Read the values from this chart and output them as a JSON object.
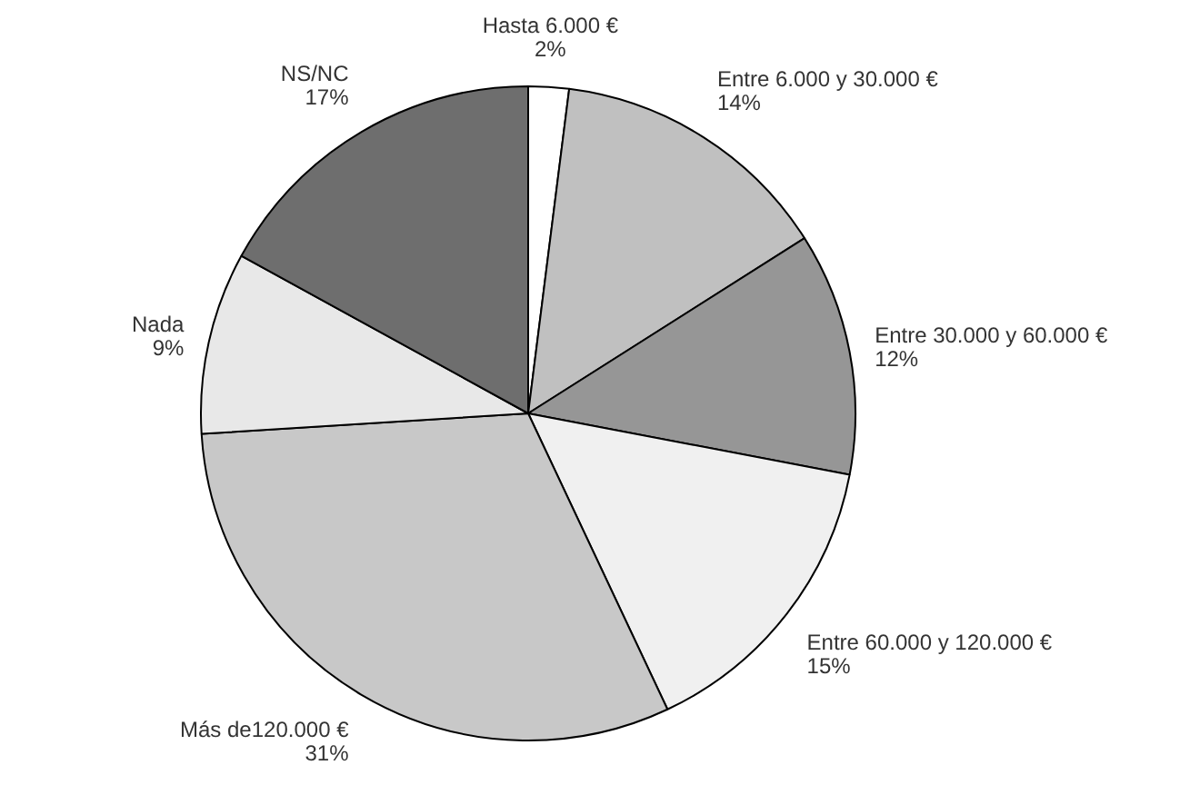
{
  "chart_data": {
    "type": "pie",
    "categories": [
      "Hasta 6.000 €",
      "Entre 6.000 y 30.000 €",
      "Entre 30.000 y 60.000 €",
      "Entre 60.000 y 120.000 €",
      "Más de120.000 €",
      "Nada",
      "NS/NC"
    ],
    "values": [
      2,
      14,
      12,
      15,
      31,
      9,
      17
    ],
    "colors": [
      "#ffffff",
      "#c0c0c0",
      "#969696",
      "#f0f0f0",
      "#c8c8c8",
      "#e8e8e8",
      "#6e6e6e"
    ],
    "value_labels": [
      "2%",
      "14%",
      "12%",
      "15%",
      "31%",
      "9%",
      "17%"
    ]
  }
}
